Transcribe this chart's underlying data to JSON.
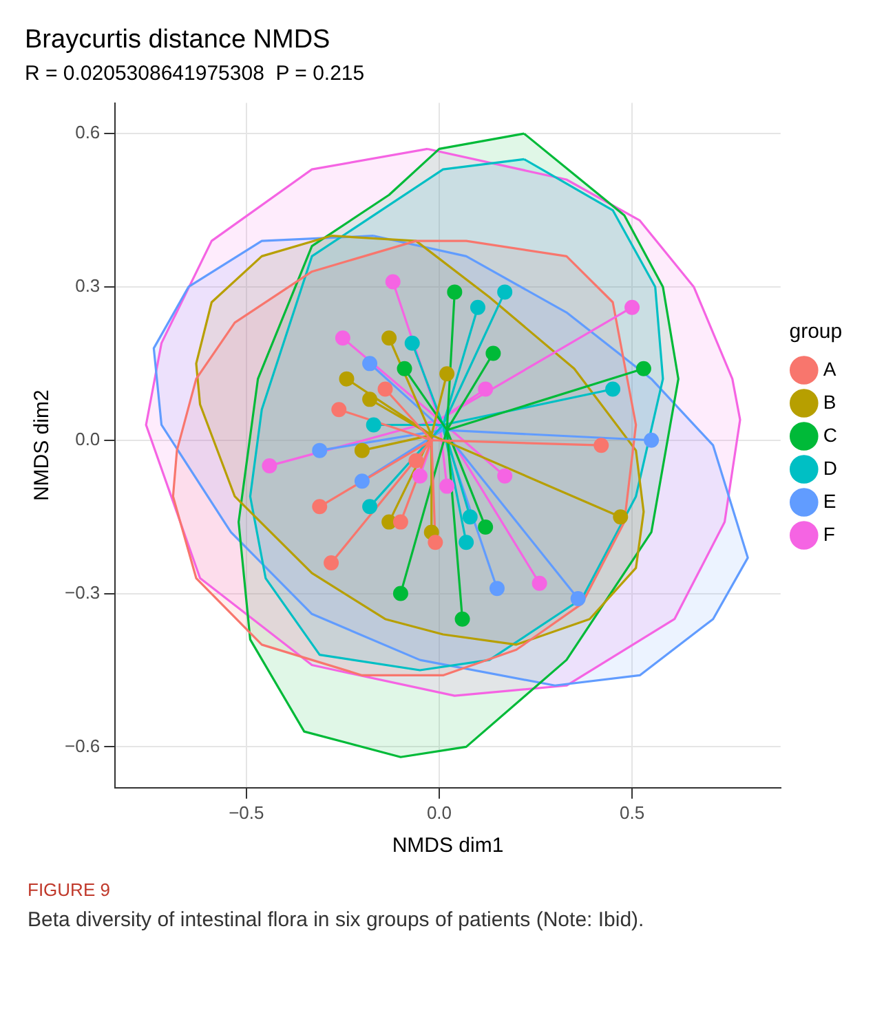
{
  "chart_data": {
    "type": "scatter",
    "title": "Braycurtis distance NMDS",
    "subtitle": "R = 0.0205308641975308  P = 0.215",
    "xlabel": "NMDS dim1",
    "ylabel": "NMDS dim2",
    "legend_title": "group",
    "legend": "right",
    "grid": true,
    "marker": "circle",
    "xlim": [
      -0.84,
      0.885
    ],
    "ylim": [
      -0.68,
      0.66
    ],
    "xticks": [
      {
        "value": -0.5,
        "label": "−0.5"
      },
      {
        "value": 0,
        "label": "0.0"
      },
      0.5
    ],
    "yticks": [
      {
        "value": -0.6,
        "label": "−0.6"
      },
      {
        "value": -0.3,
        "label": "−0.3"
      },
      {
        "value": 0,
        "label": "0.0"
      },
      0.3,
      0.6
    ],
    "annotations": [
      "FIGURE 9",
      "Beta diversity of intestinal flora in six groups of patients (Note: Ibid)."
    ],
    "series": [
      {
        "type": "area",
        "marker": "none",
        "color": "#f8766d",
        "x": [
          -0.06,
          0.07,
          0.33,
          0.45,
          0.51,
          0.48,
          0.37,
          0.2,
          0.01,
          -0.2,
          -0.46,
          -0.63,
          -0.69,
          -0.68,
          -0.63,
          -0.53,
          -0.33
        ],
        "values": [
          0.39,
          0.39,
          0.36,
          0.27,
          0.03,
          -0.16,
          -0.32,
          -0.41,
          -0.46,
          -0.46,
          -0.4,
          -0.27,
          -0.11,
          -0.02,
          0.12,
          0.23,
          0.33
        ]
      },
      {
        "type": "area",
        "marker": "none",
        "color": "#b79f00",
        "x": [
          -0.28,
          -0.06,
          0.13,
          0.35,
          0.51,
          0.53,
          0.51,
          0.39,
          0.2,
          0.01,
          -0.14,
          -0.33,
          -0.53,
          -0.62,
          -0.63,
          -0.59,
          -0.46
        ],
        "values": [
          0.4,
          0.39,
          0.28,
          0.14,
          -0.02,
          -0.14,
          -0.25,
          -0.35,
          -0.4,
          -0.38,
          -0.35,
          -0.26,
          -0.11,
          0.07,
          0.15,
          0.27,
          0.36
        ]
      },
      {
        "type": "area",
        "marker": "none",
        "color": "#00ba38",
        "x": [
          0.22,
          0.48,
          0.58,
          0.62,
          0.55,
          0.33,
          0.07,
          -0.1,
          -0.35,
          -0.49,
          -0.52,
          -0.47,
          -0.33,
          -0.13,
          0
        ],
        "values": [
          0.6,
          0.44,
          0.3,
          0.12,
          -0.18,
          -0.43,
          -0.6,
          -0.62,
          -0.57,
          -0.39,
          -0.16,
          0.12,
          0.38,
          0.48,
          0.57
        ]
      },
      {
        "type": "area",
        "marker": "none",
        "color": "#00bfc4",
        "x": [
          0.22,
          0.45,
          0.56,
          0.58,
          0.51,
          0.37,
          0.13,
          -0.05,
          -0.31,
          -0.45,
          -0.49,
          -0.46,
          -0.33,
          -0.13,
          0.01
        ],
        "values": [
          0.55,
          0.45,
          0.3,
          0.12,
          -0.11,
          -0.31,
          -0.43,
          -0.45,
          -0.42,
          -0.27,
          -0.11,
          0.06,
          0.36,
          0.46,
          0.53
        ]
      },
      {
        "type": "area",
        "marker": "none",
        "color": "#619cff",
        "x": [
          -0.17,
          0.07,
          0.33,
          0.55,
          0.71,
          0.8,
          0.71,
          0.52,
          0.3,
          -0.05,
          -0.33,
          -0.54,
          -0.72,
          -0.74,
          -0.65,
          -0.46
        ],
        "values": [
          0.4,
          0.36,
          0.25,
          0.12,
          -0.01,
          -0.23,
          -0.35,
          -0.46,
          -0.48,
          -0.43,
          -0.34,
          -0.18,
          0.03,
          0.18,
          0.3,
          0.39
        ]
      },
      {
        "type": "area",
        "marker": "none",
        "color": "#f564e3",
        "x": [
          -0.03,
          0.33,
          0.52,
          0.66,
          0.76,
          0.78,
          0.74,
          0.61,
          0.33,
          0.04,
          -0.33,
          -0.62,
          -0.76,
          -0.72,
          -0.59,
          -0.33
        ],
        "values": [
          0.57,
          0.51,
          0.43,
          0.3,
          0.12,
          0.04,
          -0.16,
          -0.35,
          -0.48,
          -0.5,
          -0.44,
          -0.27,
          0.03,
          0.19,
          0.39,
          0.53
        ]
      },
      {
        "type": "line",
        "marker": "none",
        "color": "#f8766d",
        "x": [
          -0.02,
          -0.26,
          -0.02,
          -0.14,
          -0.02,
          -0.31,
          -0.02,
          -0.28,
          -0.02,
          -0.1,
          -0.02,
          -0.01,
          -0.02,
          0.42,
          -0.02,
          -0.06
        ],
        "values": [
          0,
          0.06,
          0,
          0.1,
          0,
          -0.13,
          0,
          -0.24,
          0,
          -0.16,
          0,
          -0.2,
          0,
          -0.01,
          0,
          -0.04
        ]
      },
      {
        "type": "line",
        "marker": "none",
        "color": "#b79f00",
        "x": [
          -0.02,
          -0.13,
          -0.02,
          -0.24,
          -0.02,
          -0.18,
          -0.02,
          -0.13,
          -0.02,
          -0.2,
          -0.02,
          0.47,
          -0.02,
          -0.02,
          -0.02,
          0.02
        ],
        "values": [
          0.01,
          0.2,
          0.01,
          0.12,
          0.01,
          0.08,
          0.01,
          -0.16,
          0.01,
          -0.02,
          0.01,
          -0.15,
          0.01,
          -0.18,
          0.01,
          0.13
        ]
      },
      {
        "type": "line",
        "marker": "none",
        "color": "#00ba38",
        "x": [
          0.02,
          -0.09,
          0.02,
          0.04,
          0.02,
          0.14,
          0.02,
          0.53,
          0.02,
          -0.1,
          0.02,
          0.12,
          0.02,
          0.06
        ],
        "values": [
          0.02,
          0.14,
          0.02,
          0.29,
          0.02,
          0.17,
          0.02,
          0.14,
          0.02,
          -0.3,
          0.02,
          -0.17,
          0.02,
          -0.35
        ]
      },
      {
        "type": "line",
        "marker": "none",
        "color": "#00bfc4",
        "x": [
          0.01,
          -0.07,
          0.01,
          -0.17,
          0.01,
          0.17,
          0.01,
          0.1,
          0.01,
          0.45,
          0.01,
          -0.18,
          0.01,
          0.08,
          0.01,
          0.07
        ],
        "values": [
          0.03,
          0.19,
          0.03,
          0.03,
          0.03,
          0.29,
          0.03,
          0.26,
          0.03,
          0.1,
          0.03,
          -0.13,
          0.03,
          -0.15,
          0.03,
          -0.2
        ]
      },
      {
        "type": "line",
        "marker": "none",
        "color": "#619cff",
        "x": [
          0.01,
          -0.18,
          0.01,
          -0.31,
          0.01,
          -0.2,
          0.01,
          0.55,
          0.01,
          0.15,
          0.01,
          0.36
        ],
        "values": [
          0.02,
          0.15,
          0.02,
          -0.02,
          0.02,
          -0.08,
          0.02,
          0,
          0.02,
          -0.29,
          0.02,
          -0.31
        ]
      },
      {
        "type": "line",
        "marker": "none",
        "color": "#f564e3",
        "x": [
          0,
          -0.12,
          0,
          -0.25,
          0,
          0.5,
          0,
          0.12,
          0,
          -0.44,
          0,
          -0.05,
          0,
          0.17,
          0,
          0.26,
          0,
          0.02
        ],
        "values": [
          0.04,
          0.31,
          0.04,
          0.2,
          0.04,
          0.26,
          0.04,
          0.1,
          0.04,
          -0.05,
          0.04,
          -0.07,
          0.04,
          -0.07,
          0.04,
          -0.28,
          0.04,
          -0.09
        ]
      },
      {
        "name": "A",
        "color": "#f8766d",
        "x": [
          -0.26,
          -0.14,
          -0.31,
          -0.28,
          -0.1,
          -0.01,
          0.42,
          -0.06
        ],
        "values": [
          0.06,
          0.1,
          -0.13,
          -0.24,
          -0.16,
          -0.2,
          -0.01,
          -0.04
        ]
      },
      {
        "name": "B",
        "color": "#b79f00",
        "x": [
          -0.13,
          -0.24,
          -0.18,
          -0.13,
          -0.2,
          0.47,
          -0.02,
          0.02
        ],
        "values": [
          0.2,
          0.12,
          0.08,
          -0.16,
          -0.02,
          -0.15,
          -0.18,
          0.13
        ]
      },
      {
        "name": "C",
        "color": "#00ba38",
        "x": [
          -0.09,
          0.04,
          0.14,
          0.53,
          -0.1,
          0.12,
          0.06
        ],
        "values": [
          0.14,
          0.29,
          0.17,
          0.14,
          -0.3,
          -0.17,
          -0.35
        ]
      },
      {
        "name": "D",
        "color": "#00bfc4",
        "x": [
          -0.07,
          -0.17,
          0.17,
          0.1,
          0.45,
          -0.18,
          0.08,
          0.07
        ],
        "values": [
          0.19,
          0.03,
          0.29,
          0.26,
          0.1,
          -0.13,
          -0.15,
          -0.2
        ]
      },
      {
        "name": "E",
        "color": "#619cff",
        "x": [
          -0.18,
          -0.31,
          -0.2,
          0.55,
          0.15,
          0.36
        ],
        "values": [
          0.15,
          -0.02,
          -0.08,
          0,
          -0.29,
          -0.31
        ]
      },
      {
        "name": "F",
        "color": "#f564e3",
        "x": [
          -0.12,
          -0.25,
          0.5,
          0.12,
          -0.44,
          -0.05,
          0.17,
          0.26,
          0.02
        ],
        "values": [
          0.31,
          0.2,
          0.26,
          0.1,
          -0.05,
          -0.07,
          -0.07,
          -0.28,
          -0.09
        ]
      }
    ]
  }
}
